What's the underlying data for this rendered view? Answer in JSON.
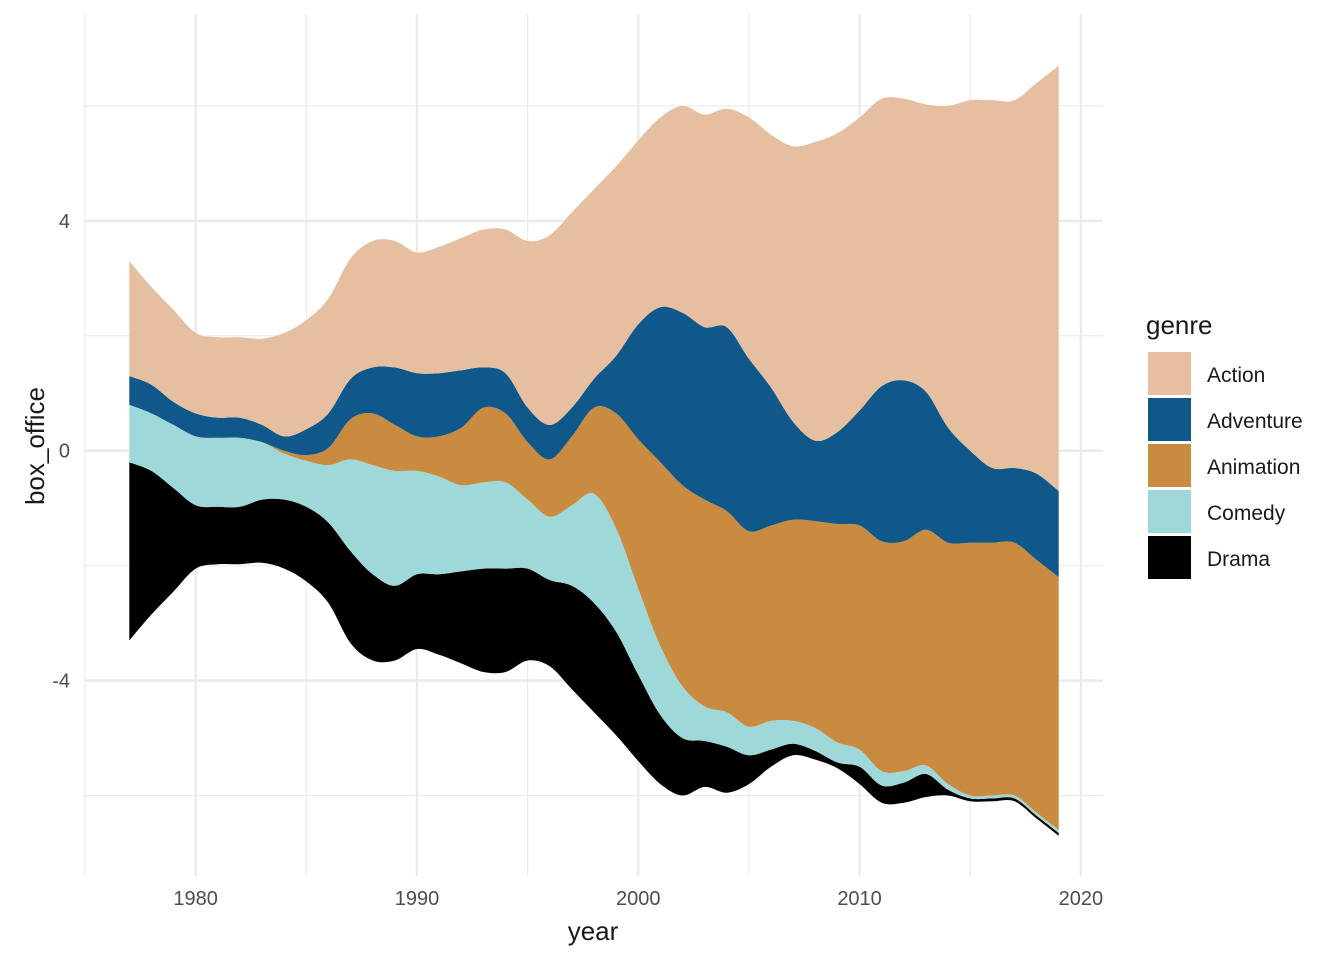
{
  "chart_data": {
    "type": "area",
    "subtype": "streamgraph",
    "title": "",
    "xlabel": "year",
    "ylabel": "box_office",
    "xlim": [
      1975,
      2021
    ],
    "ylim": [
      -7.4,
      7.6
    ],
    "x_ticks": [
      1980,
      1990,
      2000,
      2010,
      2020
    ],
    "y_ticks": [
      -4,
      0,
      4
    ],
    "grid": true,
    "legend": {
      "title": "genre",
      "position": "right"
    },
    "colors": {
      "Action": "#e5bfa0",
      "Adventure": "#0f5889",
      "Animation": "#c98b40",
      "Comedy": "#9fd8d8",
      "Drama": "#000000",
      "grid": "#ebebeb",
      "background": "#ffffff"
    },
    "x": [
      1977,
      1978,
      1979,
      1980,
      1981,
      1982,
      1983,
      1984,
      1985,
      1986,
      1987,
      1988,
      1989,
      1990,
      1991,
      1992,
      1993,
      1994,
      1995,
      1996,
      1997,
      1998,
      1999,
      2000,
      2001,
      2002,
      2003,
      2004,
      2005,
      2006,
      2007,
      2008,
      2009,
      2010,
      2011,
      2012,
      2013,
      2014,
      2015,
      2016,
      2017,
      2018,
      2019
    ],
    "series": [
      {
        "name": "Drama",
        "values": [
          3.1,
          2.5,
          1.8,
          1.1,
          1.0,
          1.0,
          1.1,
          1.2,
          1.3,
          1.4,
          1.6,
          1.5,
          1.3,
          1.3,
          1.4,
          1.6,
          1.8,
          1.8,
          1.6,
          1.5,
          1.8,
          1.9,
          1.8,
          1.5,
          1.2,
          1.0,
          0.8,
          0.8,
          0.5,
          0.3,
          0.2,
          0.15,
          0.1,
          0.3,
          0.3,
          0.35,
          0.4,
          0.1,
          0.05,
          0.05,
          0.05,
          0.05,
          0.05
        ]
      },
      {
        "name": "Comedy",
        "values": [
          1.0,
          1.0,
          1.1,
          1.2,
          1.2,
          1.2,
          1.0,
          0.8,
          0.8,
          1.0,
          1.6,
          1.9,
          2.0,
          1.8,
          1.7,
          1.5,
          1.5,
          1.5,
          1.2,
          1.1,
          1.4,
          1.9,
          1.8,
          1.5,
          1.2,
          0.9,
          0.6,
          0.6,
          0.5,
          0.5,
          0.4,
          0.4,
          0.35,
          0.3,
          0.25,
          0.2,
          0.15,
          0.1,
          0.05,
          0.05,
          0.05,
          0.05,
          0.05
        ]
      },
      {
        "name": "Animation",
        "values": [
          0,
          0,
          0,
          0,
          0,
          0,
          0,
          0.05,
          0.1,
          0.3,
          0.7,
          0.9,
          0.8,
          0.6,
          0.7,
          1.0,
          1.3,
          1.2,
          1.0,
          1.0,
          1.2,
          1.5,
          2.0,
          2.6,
          3.2,
          3.5,
          3.6,
          3.5,
          3.4,
          3.4,
          3.5,
          3.6,
          3.8,
          3.9,
          4.0,
          4.0,
          4.1,
          4.2,
          4.4,
          4.4,
          4.4,
          4.4,
          4.4
        ]
      },
      {
        "name": "Adventure",
        "values": [
          0.5,
          0.5,
          0.4,
          0.4,
          0.35,
          0.35,
          0.3,
          0.25,
          0.45,
          0.6,
          0.7,
          0.8,
          1.0,
          1.1,
          1.1,
          1.0,
          0.7,
          0.7,
          0.6,
          0.6,
          0.5,
          0.5,
          1.0,
          2.0,
          2.7,
          3.0,
          3.0,
          3.2,
          3.0,
          2.4,
          1.7,
          1.4,
          1.6,
          2.0,
          2.7,
          2.8,
          2.4,
          2.0,
          1.6,
          1.3,
          1.3,
          1.5,
          1.5
        ]
      },
      {
        "name": "Action",
        "values": [
          2.0,
          1.7,
          1.6,
          1.4,
          1.4,
          1.4,
          1.5,
          1.8,
          1.9,
          2.0,
          2.1,
          2.2,
          2.2,
          2.1,
          2.2,
          2.3,
          2.4,
          2.5,
          2.9,
          3.3,
          3.4,
          3.3,
          3.3,
          3.2,
          3.3,
          3.6,
          3.7,
          3.8,
          4.2,
          4.4,
          4.8,
          5.2,
          5.2,
          5.1,
          5.0,
          4.9,
          5.0,
          5.6,
          6.1,
          6.4,
          6.4,
          6.8,
          7.4
        ]
      }
    ]
  }
}
